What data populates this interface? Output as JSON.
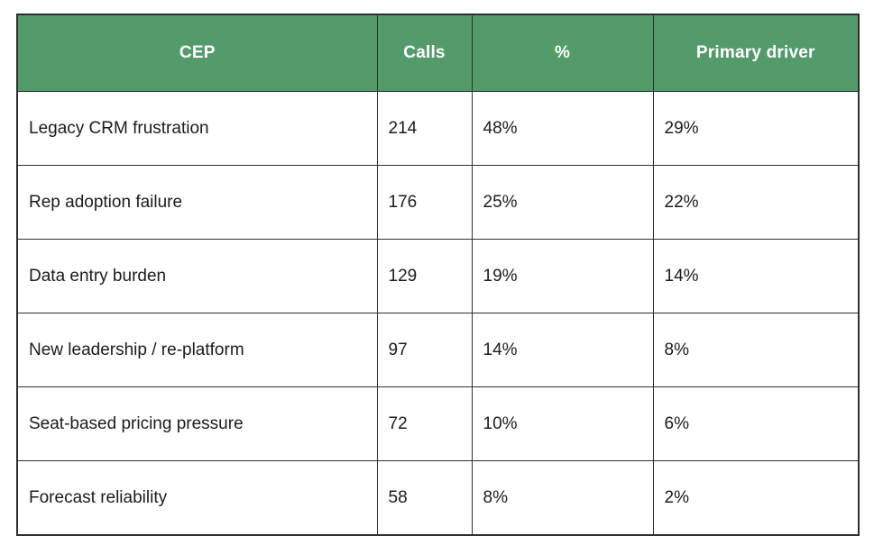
{
  "colors": {
    "header_bg": "#549b6c",
    "header_text": "#ffffff",
    "border": "#2f2f2f",
    "body_text": "#1c1c1c"
  },
  "table": {
    "headers": [
      "CEP",
      "Calls",
      "%",
      "Primary driver"
    ],
    "rows": [
      [
        "Legacy CRM frustration",
        "214",
        "48%",
        "29%"
      ],
      [
        "Rep adoption failure",
        "176",
        "25%",
        "22%"
      ],
      [
        "Data entry burden",
        "129",
        "19%",
        "14%"
      ],
      [
        "New leadership / re-platform",
        "97",
        "14%",
        "8%"
      ],
      [
        "Seat-based pricing pressure",
        "72",
        "10%",
        "6%"
      ],
      [
        "Forecast reliability",
        "58",
        "8%",
        "2%"
      ]
    ]
  },
  "chart_data": {
    "type": "table",
    "columns": [
      "CEP",
      "Calls",
      "%",
      "Primary driver"
    ],
    "rows": [
      {
        "cep": "Legacy CRM frustration",
        "calls": 214,
        "pct": "48%",
        "primary_driver": "29%"
      },
      {
        "cep": "Rep adoption failure",
        "calls": 176,
        "pct": "25%",
        "primary_driver": "22%"
      },
      {
        "cep": "Data entry burden",
        "calls": 129,
        "pct": "19%",
        "primary_driver": "14%"
      },
      {
        "cep": "New leadership / re-platform",
        "calls": 97,
        "pct": "14%",
        "primary_driver": "8%"
      },
      {
        "cep": "Seat-based pricing pressure",
        "calls": 72,
        "pct": "10%",
        "primary_driver": "6%"
      },
      {
        "cep": "Forecast reliability",
        "calls": 58,
        "pct": "8%",
        "primary_driver": "2%"
      }
    ]
  }
}
